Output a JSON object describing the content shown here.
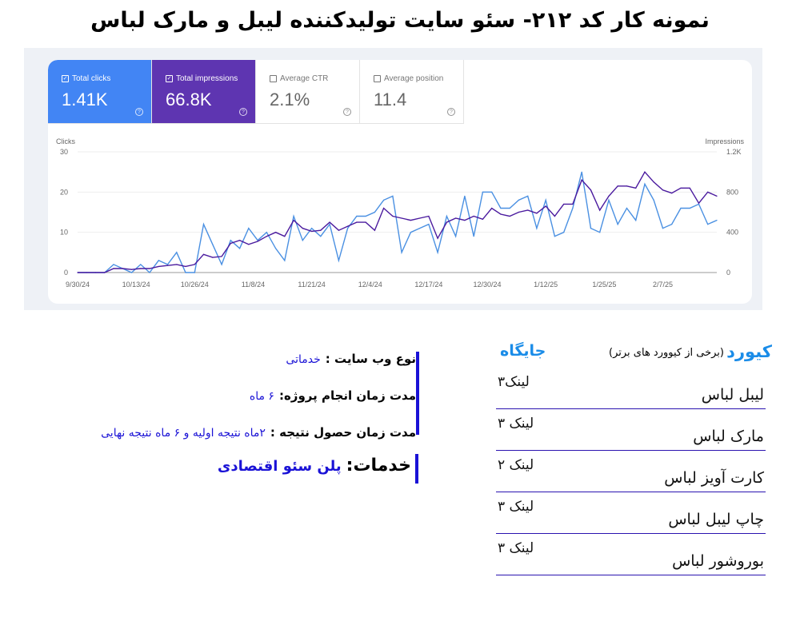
{
  "title": "نمونه کار کد ۲۱۲- سئو سایت تولیدکننده لیبل و مارک لباس",
  "metrics": [
    {
      "label": "Total clicks",
      "value": "1.41K",
      "checked": true,
      "color": "#4285f4"
    },
    {
      "label": "Total impressions",
      "value": "66.8K",
      "checked": true,
      "color": "#5e35b1"
    },
    {
      "label": "Average CTR",
      "value": "2.1%",
      "checked": false
    },
    {
      "label": "Average position",
      "value": "11.4",
      "checked": false
    }
  ],
  "chart_data": {
    "type": "line",
    "left_axis_label": "Clicks",
    "right_axis_label": "Impressions",
    "left_ylim": [
      0,
      30
    ],
    "right_ylim": [
      0,
      1200
    ],
    "left_ticks": [
      "0",
      "10",
      "20",
      "30"
    ],
    "right_ticks": [
      "0",
      "400",
      "800",
      "1.2K"
    ],
    "x_tick_labels": [
      "9/30/24",
      "10/13/24",
      "10/26/24",
      "11/8/24",
      "11/21/24",
      "12/4/24",
      "12/17/24",
      "12/30/24",
      "1/12/25",
      "1/25/25",
      "2/7/25"
    ],
    "grid": true,
    "x": [
      "9/30/24",
      "10/2/24",
      "10/4/24",
      "10/6/24",
      "10/8/24",
      "10/10/24",
      "10/12/24",
      "10/14/24",
      "10/16/24",
      "10/18/24",
      "10/20/24",
      "10/22/24",
      "10/24/24",
      "10/26/24",
      "10/28/24",
      "10/30/24",
      "11/1/24",
      "11/3/24",
      "11/5/24",
      "11/7/24",
      "11/9/24",
      "11/11/24",
      "11/13/24",
      "11/15/24",
      "11/17/24",
      "11/19/24",
      "11/21/24",
      "11/23/24",
      "11/25/24",
      "11/27/24",
      "11/29/24",
      "12/1/24",
      "12/3/24",
      "12/5/24",
      "12/7/24",
      "12/9/24",
      "12/11/24",
      "12/13/24",
      "12/15/24",
      "12/17/24",
      "12/19/24",
      "12/21/24",
      "12/23/24",
      "12/25/24",
      "12/27/24",
      "12/29/24",
      "12/31/24",
      "1/2/25",
      "1/4/25",
      "1/6/25",
      "1/8/25",
      "1/10/25",
      "1/12/25",
      "1/14/25",
      "1/16/25",
      "1/18/25",
      "1/20/25",
      "1/22/25",
      "1/24/25",
      "1/26/25",
      "1/28/25",
      "1/30/25",
      "2/1/25",
      "2/3/25",
      "2/5/25",
      "2/7/25",
      "2/9/25",
      "2/11/25",
      "2/13/25",
      "2/15/25",
      "2/17/25",
      "2/19/25"
    ],
    "series": [
      {
        "name": "Clicks",
        "axis": "left",
        "color": "#4a90e2",
        "values": [
          0,
          0,
          0,
          0,
          2,
          1,
          0,
          2,
          0,
          3,
          2,
          5,
          0,
          0,
          12,
          7,
          2,
          8,
          6,
          11,
          8,
          10,
          6,
          3,
          14,
          8,
          11,
          9,
          12,
          3,
          11,
          14,
          14,
          15,
          18,
          19,
          5,
          10,
          11,
          12,
          5,
          14,
          9,
          19,
          9,
          20,
          20,
          16,
          16,
          18,
          19,
          11,
          18,
          9,
          10,
          16,
          25,
          11,
          10,
          18,
          12,
          16,
          13,
          22,
          18,
          11,
          12,
          16,
          16,
          17,
          12,
          13
        ]
      },
      {
        "name": "Impressions",
        "axis": "right",
        "color": "#4a1a9e",
        "values": [
          0,
          0,
          0,
          0,
          40,
          40,
          30,
          40,
          40,
          60,
          70,
          80,
          60,
          80,
          180,
          150,
          160,
          290,
          320,
          280,
          310,
          360,
          400,
          360,
          520,
          440,
          410,
          420,
          500,
          420,
          460,
          500,
          500,
          420,
          640,
          560,
          540,
          520,
          540,
          560,
          340,
          500,
          540,
          520,
          560,
          530,
          640,
          580,
          560,
          600,
          620,
          590,
          660,
          560,
          680,
          680,
          920,
          820,
          620,
          760,
          860,
          860,
          840,
          1000,
          900,
          820,
          790,
          840,
          840,
          690,
          800,
          760
        ]
      }
    ]
  },
  "info": {
    "site_type_label": "نوع وب سایت :",
    "site_type_value": "خدماتی",
    "duration_label": "مدت زمان انجام پروژه:",
    "duration_value": "۶ ماه",
    "result_label": "مدت زمان حصول نتیجه :",
    "result_value": "۲ماه نتیجه اولیه و ۶ ماه نتیجه نهایی",
    "services_label": "خدمات:",
    "services_value": "پلن سئو اقتصادی"
  },
  "keywords": {
    "header_keyword": "کیورد",
    "header_sub": "(برخی از کیوورد های برتر)",
    "header_position": "جایگاه",
    "rows": [
      {
        "keyword": "لیبل لباس",
        "position": "لینک۳"
      },
      {
        "keyword": "مارک  لباس",
        "position": "لینک ۳"
      },
      {
        "keyword": "کارت آویز لباس",
        "position": "لینک ۲"
      },
      {
        "keyword": "چاپ لیبل لباس",
        "position": "لینک ۳"
      },
      {
        "keyword": "بوروشور لباس",
        "position": "لینک ۳"
      }
    ]
  }
}
